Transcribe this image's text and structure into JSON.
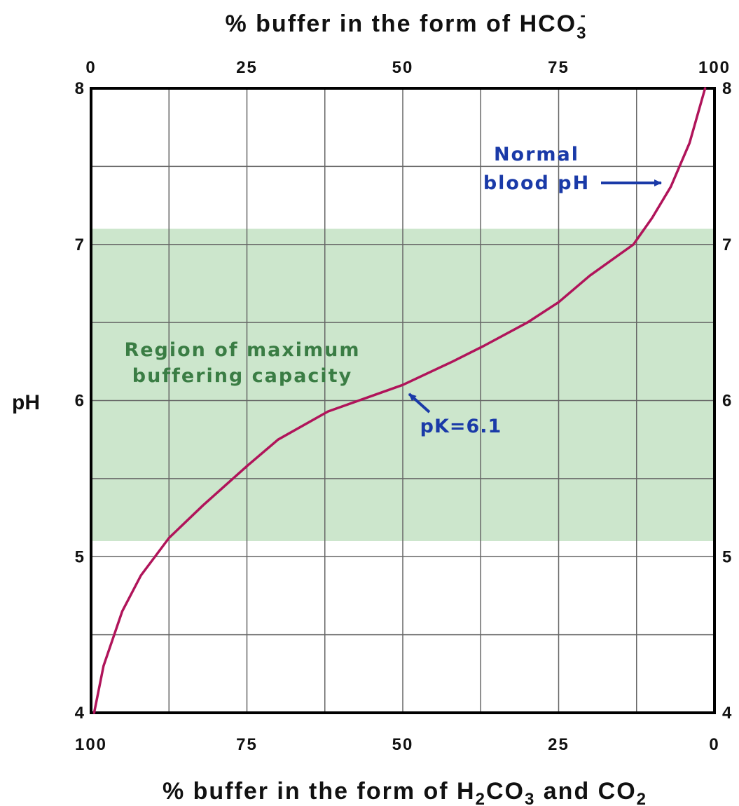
{
  "chart_data": {
    "type": "line",
    "title_top": {
      "prefix": "% buffer in the form of HCO",
      "sub": "3",
      "sup": "-"
    },
    "title_bottom": {
      "parts": [
        "% buffer in the form of H",
        "2",
        "CO",
        "3",
        " and CO",
        "2"
      ]
    },
    "ylabel": "pH",
    "top_ticks": [
      "0",
      "25",
      "50",
      "75",
      "100"
    ],
    "bottom_ticks": [
      "100",
      "75",
      "50",
      "25",
      "0"
    ],
    "y_ticks": [
      "4",
      "5",
      "6",
      "7",
      "8"
    ],
    "xlim": [
      0,
      100
    ],
    "ylim": [
      4,
      8
    ],
    "x_grid_step": 12.5,
    "y_grid_step": 0.5,
    "grid": true,
    "shaded_region": {
      "y_from": 5.1,
      "y_to": 7.1,
      "color": "#cce6cc",
      "label_lines": [
        "Region of maximum",
        "buffering capacity"
      ]
    },
    "series": [
      {
        "color": "#b0145a",
        "x": [
          0.5,
          2,
          5,
          8,
          12.5,
          18,
          25,
          30,
          38,
          50,
          58,
          63,
          70,
          75,
          80,
          87,
          90,
          93,
          96,
          98.5
        ],
        "y": [
          4.0,
          4.3,
          4.65,
          4.88,
          5.12,
          5.33,
          5.58,
          5.75,
          5.93,
          6.1,
          6.25,
          6.35,
          6.5,
          6.63,
          6.8,
          7.0,
          7.17,
          7.37,
          7.65,
          8.0
        ]
      }
    ],
    "annotations": [
      {
        "lines": [
          "Normal",
          "blood pH"
        ],
        "color": "#1a3aa8",
        "points_to": {
          "x": 92,
          "y": 7.4
        }
      },
      {
        "lines": [
          "pK=6.1"
        ],
        "color": "#1a3aa8",
        "points_to": {
          "x": 50.5,
          "y": 6.07
        }
      }
    ],
    "colors": {
      "grid": "#666666",
      "frame": "#000000",
      "shade": "#cce6cc",
      "curve": "#b0145a",
      "annotation": "#1a3aa8",
      "region_text": "#3a7d44"
    }
  }
}
